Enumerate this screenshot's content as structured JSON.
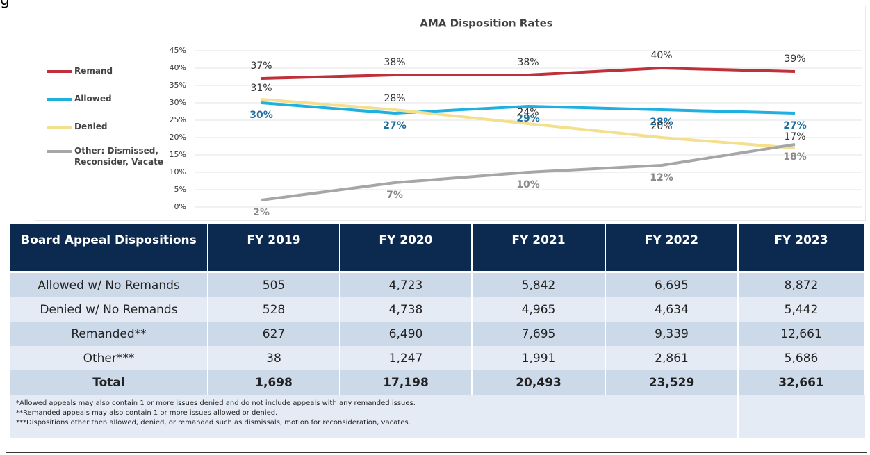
{
  "page_fragment": "g",
  "chart_data": {
    "type": "line",
    "title": "AMA Disposition Rates",
    "categories": [
      null,
      null,
      null,
      null,
      null
    ],
    "ylim": [
      0,
      45
    ],
    "yticks": [
      {
        "value": 0,
        "label": "0%"
      },
      {
        "value": 5,
        "label": "5%"
      },
      {
        "value": 10,
        "label": "10%"
      },
      {
        "value": 15,
        "label": "15%"
      },
      {
        "value": 20,
        "label": "20%"
      },
      {
        "value": 25,
        "label": "25%"
      },
      {
        "value": 30,
        "label": "30%"
      },
      {
        "value": 35,
        "label": "35%"
      },
      {
        "value": 40,
        "label": "40%"
      },
      {
        "value": 45,
        "label": "45%"
      }
    ],
    "grid": true,
    "legend": "left",
    "series": [
      {
        "name": "Remand",
        "color": "#c0303a",
        "values": [
          37,
          38,
          38,
          40,
          39
        ],
        "value_labels": [
          "37%",
          "38%",
          "38%",
          "40%",
          "39%"
        ]
      },
      {
        "name": "Allowed",
        "color": "#1fb0e0",
        "values": [
          30,
          27,
          29,
          28,
          27
        ],
        "value_labels": [
          "30%",
          "27%",
          "29%",
          "28%",
          "27%"
        ]
      },
      {
        "name": "Denied",
        "color": "#f3df8e",
        "values": [
          31,
          28,
          24,
          20,
          17
        ],
        "value_labels": [
          "31%",
          "28%",
          "24%",
          "20%",
          "17%"
        ]
      },
      {
        "name": "Other: Dismissed, Reconsider, Vacate",
        "color": "#a6a6a6",
        "values": [
          2,
          7,
          10,
          12,
          18
        ],
        "value_labels": [
          "2%",
          "7%",
          "10%",
          "12%",
          "18%"
        ]
      }
    ]
  },
  "table": {
    "header": [
      "Board Appeal Dispositions",
      "FY 2019",
      "FY 2020",
      "FY 2021",
      "FY 2022",
      "FY 2023"
    ],
    "rows": [
      [
        "Allowed w/ No Remands",
        "505",
        "4,723",
        "5,842",
        "6,695",
        "8,872"
      ],
      [
        "Denied w/ No Remands",
        "528",
        "4,738",
        "4,965",
        "4,634",
        "5,442"
      ],
      [
        "Remanded**",
        "627",
        "6,490",
        "7,695",
        "9,339",
        "12,661"
      ],
      [
        "Other***",
        "38",
        "1,247",
        "1,991",
        "2,861",
        "5,686"
      ]
    ],
    "total": [
      "Total",
      "1,698",
      "17,198",
      "20,493",
      "23,529",
      "32,661"
    ],
    "footnotes": [
      "*Allowed appeals may also contain 1 or more issues denied and do not include appeals with any remanded issues.",
      "**Remanded appeals may also contain 1 or more issues allowed or denied.",
      "***Dispositions other then allowed, denied, or remanded such as dismissals, motion for reconsideration, vacates."
    ]
  }
}
